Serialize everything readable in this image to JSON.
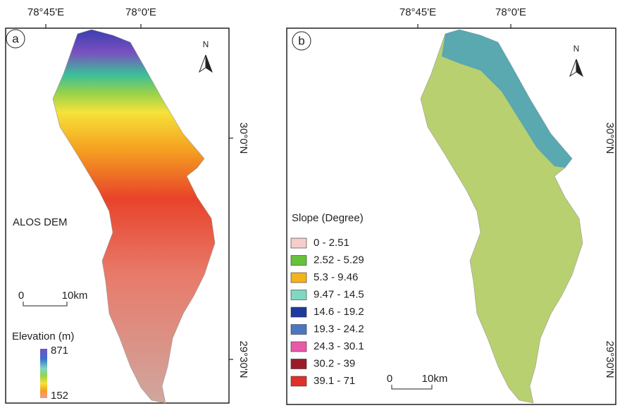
{
  "panel_a": {
    "label": "a",
    "top_ticks": [
      "78°45'E",
      "78°0'E"
    ],
    "right_ticks": [
      "30°0'N",
      "29°30'N"
    ],
    "north": "N",
    "dem_label": "ALOS DEM",
    "scale": {
      "start": "0",
      "end": "10km"
    },
    "legend": {
      "title": "Elevation (m)",
      "max": "871",
      "min": "152"
    }
  },
  "panel_b": {
    "label": "b",
    "top_ticks": [
      "78°45'E",
      "78°0'E"
    ],
    "right_ticks": [
      "30°0'N",
      "29°30'N"
    ],
    "north": "N",
    "scale": {
      "start": "0",
      "end": "10km"
    },
    "legend": {
      "title": "Slope (Degree)",
      "classes": [
        {
          "label": "0 - 2.51",
          "color": "#f6cccc"
        },
        {
          "label": "2.52 - 5.29",
          "color": "#66c23a"
        },
        {
          "label": "5.3 - 9.46",
          "color": "#f5b21a"
        },
        {
          "label": "9.47 - 14.5",
          "color": "#7fd8c2"
        },
        {
          "label": "14.6 - 19.2",
          "color": "#1e3a9e"
        },
        {
          "label": "19.3 - 24.2",
          "color": "#4a78c0"
        },
        {
          "label": "24.3 - 30.1",
          "color": "#e85aa8"
        },
        {
          "label": "30.2 - 39",
          "color": "#9b1b2a"
        },
        {
          "label": "39.1 - 71",
          "color": "#e0302a"
        }
      ]
    }
  }
}
